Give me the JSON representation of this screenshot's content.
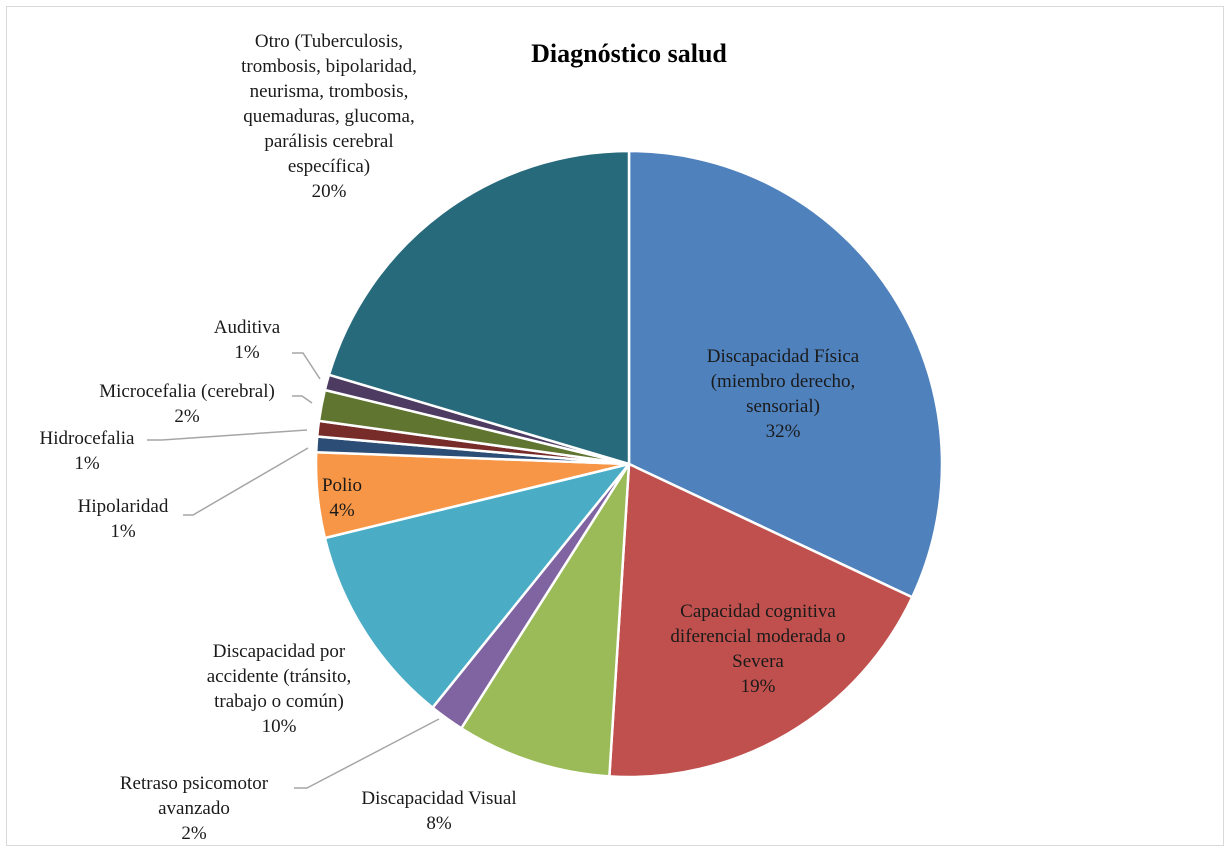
{
  "chart_data": {
    "type": "pie",
    "title": "Diagnóstico salud",
    "slices": [
      {
        "label": "Discapacidad Física (miembro derecho, sensorial)",
        "value": 32,
        "percent_label": "32%",
        "color": "#4F81BD"
      },
      {
        "label": "Capacidad cognitiva diferencial moderada o Severa",
        "value": 19,
        "percent_label": "19%",
        "color": "#C0504D"
      },
      {
        "label": "Discapacidad Visual",
        "value": 8,
        "percent_label": "8%",
        "color": "#9BBB59"
      },
      {
        "label": "Retraso psicomotor avanzado",
        "value": 1.8,
        "percent_label": "2%",
        "color": "#8064A2"
      },
      {
        "label": "Discapacidad por accidente (tránsito, trabajo o común)",
        "value": 10.4,
        "percent_label": "10%",
        "color": "#4BACC6"
      },
      {
        "label": "Polio",
        "value": 4.4,
        "percent_label": "4%",
        "color": "#F79646"
      },
      {
        "label": "Hipolaridad",
        "value": 0.8,
        "percent_label": "1%",
        "color": "#2C4D75"
      },
      {
        "label": "Hidrocefalia",
        "value": 0.8,
        "percent_label": "1%",
        "color": "#772C2A"
      },
      {
        "label": "Microcefalia (cerebral)",
        "value": 1.6,
        "percent_label": "2%",
        "color": "#5F7530"
      },
      {
        "label": "Auditiva",
        "value": 0.8,
        "percent_label": "1%",
        "color": "#4D3B62"
      },
      {
        "label": "Otro (Tuberculosis, trombosis, bipolaridad, neurisma, trombosis, quemaduras, glucoma, parálisis cerebral específica)",
        "value": 20.4,
        "percent_label": "20%",
        "color": "#276A7C"
      }
    ]
  }
}
